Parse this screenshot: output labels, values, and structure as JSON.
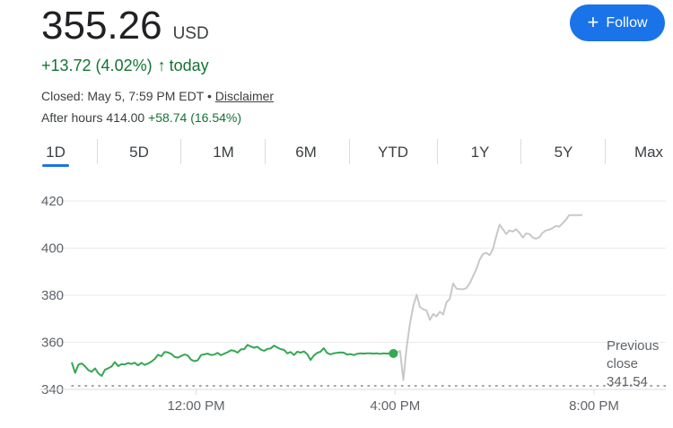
{
  "quote": {
    "price": "355.26",
    "currency": "USD",
    "change": "+13.72 (4.02%)",
    "change_arrow": "↑",
    "change_period": "today",
    "closed_text": "Closed: May 5, 7:59 PM EDT",
    "separator": "•",
    "disclaimer": "Disclaimer",
    "after_hours_label": "After hours",
    "after_hours_price": "414.00",
    "after_hours_change": "+58.74 (16.54%)"
  },
  "follow_button": {
    "icon": "plus-icon",
    "label": "Follow"
  },
  "tabs": [
    {
      "label": "1D",
      "active": true
    },
    {
      "label": "5D"
    },
    {
      "label": "1M"
    },
    {
      "label": "6M"
    },
    {
      "label": "YTD"
    },
    {
      "label": "1Y"
    },
    {
      "label": "5Y"
    },
    {
      "label": "Max"
    }
  ],
  "colors": {
    "regular_line": "#34a853",
    "after_hours_line": "#c8c8c8",
    "accent": "#1a73e8",
    "positive": "#137333"
  },
  "chart_data": {
    "type": "line",
    "ylim": [
      340,
      425
    ],
    "y_ticks": [
      "420",
      "400",
      "380",
      "360",
      "340"
    ],
    "y_tick_values": [
      420,
      400,
      380,
      360,
      340
    ],
    "x_ticks": [
      "12:00 PM",
      "4:00 PM",
      "8:00 PM"
    ],
    "x_tick_values": [
      720,
      960,
      1200
    ],
    "xlim": [
      570,
      1200
    ],
    "previous_close": {
      "label_line1": "Previous",
      "label_line2": "close",
      "value": "341.54",
      "y": 341.54
    },
    "series": [
      {
        "session": "regular",
        "x": [
          570,
          574,
          578,
          582,
          586,
          590,
          594,
          598,
          602,
          606,
          610,
          614,
          618,
          622,
          626,
          630,
          634,
          638,
          642,
          646,
          650,
          654,
          658,
          662,
          666,
          670,
          674,
          678,
          682,
          686,
          690,
          694,
          698,
          702,
          706,
          710,
          714,
          718,
          722,
          726,
          730,
          734,
          738,
          742,
          746,
          750,
          754,
          758,
          762,
          766,
          770,
          774,
          778,
          782,
          786,
          790,
          794,
          798,
          802,
          806,
          810,
          814,
          818,
          822,
          826,
          830,
          834,
          838,
          842,
          846,
          850,
          854,
          858,
          862,
          866,
          870,
          874,
          878,
          882,
          886,
          890,
          894,
          898,
          902,
          906,
          910,
          914,
          918,
          922,
          926,
          930,
          934,
          938,
          942,
          946,
          950,
          954,
          958
        ],
        "y": [
          351.5,
          347.0,
          350.5,
          351.0,
          349.8,
          348.2,
          347.5,
          348.9,
          346.8,
          345.7,
          348.4,
          349.0,
          349.7,
          351.6,
          349.9,
          350.7,
          350.6,
          351.2,
          350.8,
          351.3,
          350.2,
          351.3,
          350.4,
          351.0,
          351.8,
          352.9,
          354.7,
          354.1,
          355.9,
          355.7,
          355.1,
          353.8,
          353.5,
          354.2,
          354.8,
          354.4,
          352.6,
          352.0,
          352.4,
          354.6,
          354.9,
          355.2,
          354.6,
          354.8,
          355.5,
          354.5,
          355.2,
          355.8,
          356.6,
          356.4,
          355.6,
          357.0,
          357.1,
          358.9,
          358.2,
          357.7,
          358.1,
          356.9,
          356.4,
          357.2,
          357.4,
          358.6,
          357.8,
          357.1,
          356.8,
          355.3,
          355.9,
          354.6,
          356.0,
          355.6,
          356.1,
          355.0,
          352.5,
          354.4,
          355.5,
          356.0,
          357.5,
          355.5,
          354.9,
          355.3,
          355.5,
          355.7,
          355.6,
          354.8,
          355.0,
          354.6,
          355.1,
          355.3,
          355.2,
          355.3,
          355.3,
          355.2,
          355.3,
          355.1,
          355.3,
          355.2,
          355.3,
          355.26
        ]
      },
      {
        "session": "after_hours",
        "x": [
          958,
          962,
          966,
          970,
          974,
          978,
          982,
          986,
          990,
          994,
          998,
          1002,
          1006,
          1010,
          1014,
          1018,
          1022,
          1026,
          1030,
          1034,
          1038,
          1042,
          1046,
          1050,
          1054,
          1058,
          1062,
          1066,
          1070,
          1074,
          1078,
          1082,
          1086,
          1090,
          1094,
          1098,
          1102,
          1106,
          1110,
          1114,
          1118,
          1122,
          1126,
          1130,
          1134,
          1138,
          1142,
          1146,
          1150,
          1154,
          1158,
          1162,
          1166,
          1170,
          1174,
          1178,
          1182,
          1186
        ],
        "y": [
          355.3,
          355.7,
          356.3,
          344.0,
          358.0,
          368.0,
          375.5,
          380.2,
          375.0,
          374.0,
          373.5,
          369.5,
          372.0,
          371.0,
          373.0,
          371.8,
          377.0,
          378.5,
          385.0,
          382.8,
          382.6,
          382.5,
          383.0,
          385.0,
          388.0,
          391.0,
          395.0,
          397.5,
          398.0,
          397.0,
          399.5,
          405.0,
          410.0,
          408.0,
          406.0,
          407.5,
          407.0,
          408.0,
          406.5,
          404.5,
          406.2,
          406.0,
          404.5,
          404.0,
          404.6,
          406.5,
          407.5,
          407.8,
          408.5,
          409.4,
          409.1,
          410.5,
          412.0,
          414.0,
          414.0,
          414.0,
          414.0,
          414.0
        ]
      }
    ]
  }
}
